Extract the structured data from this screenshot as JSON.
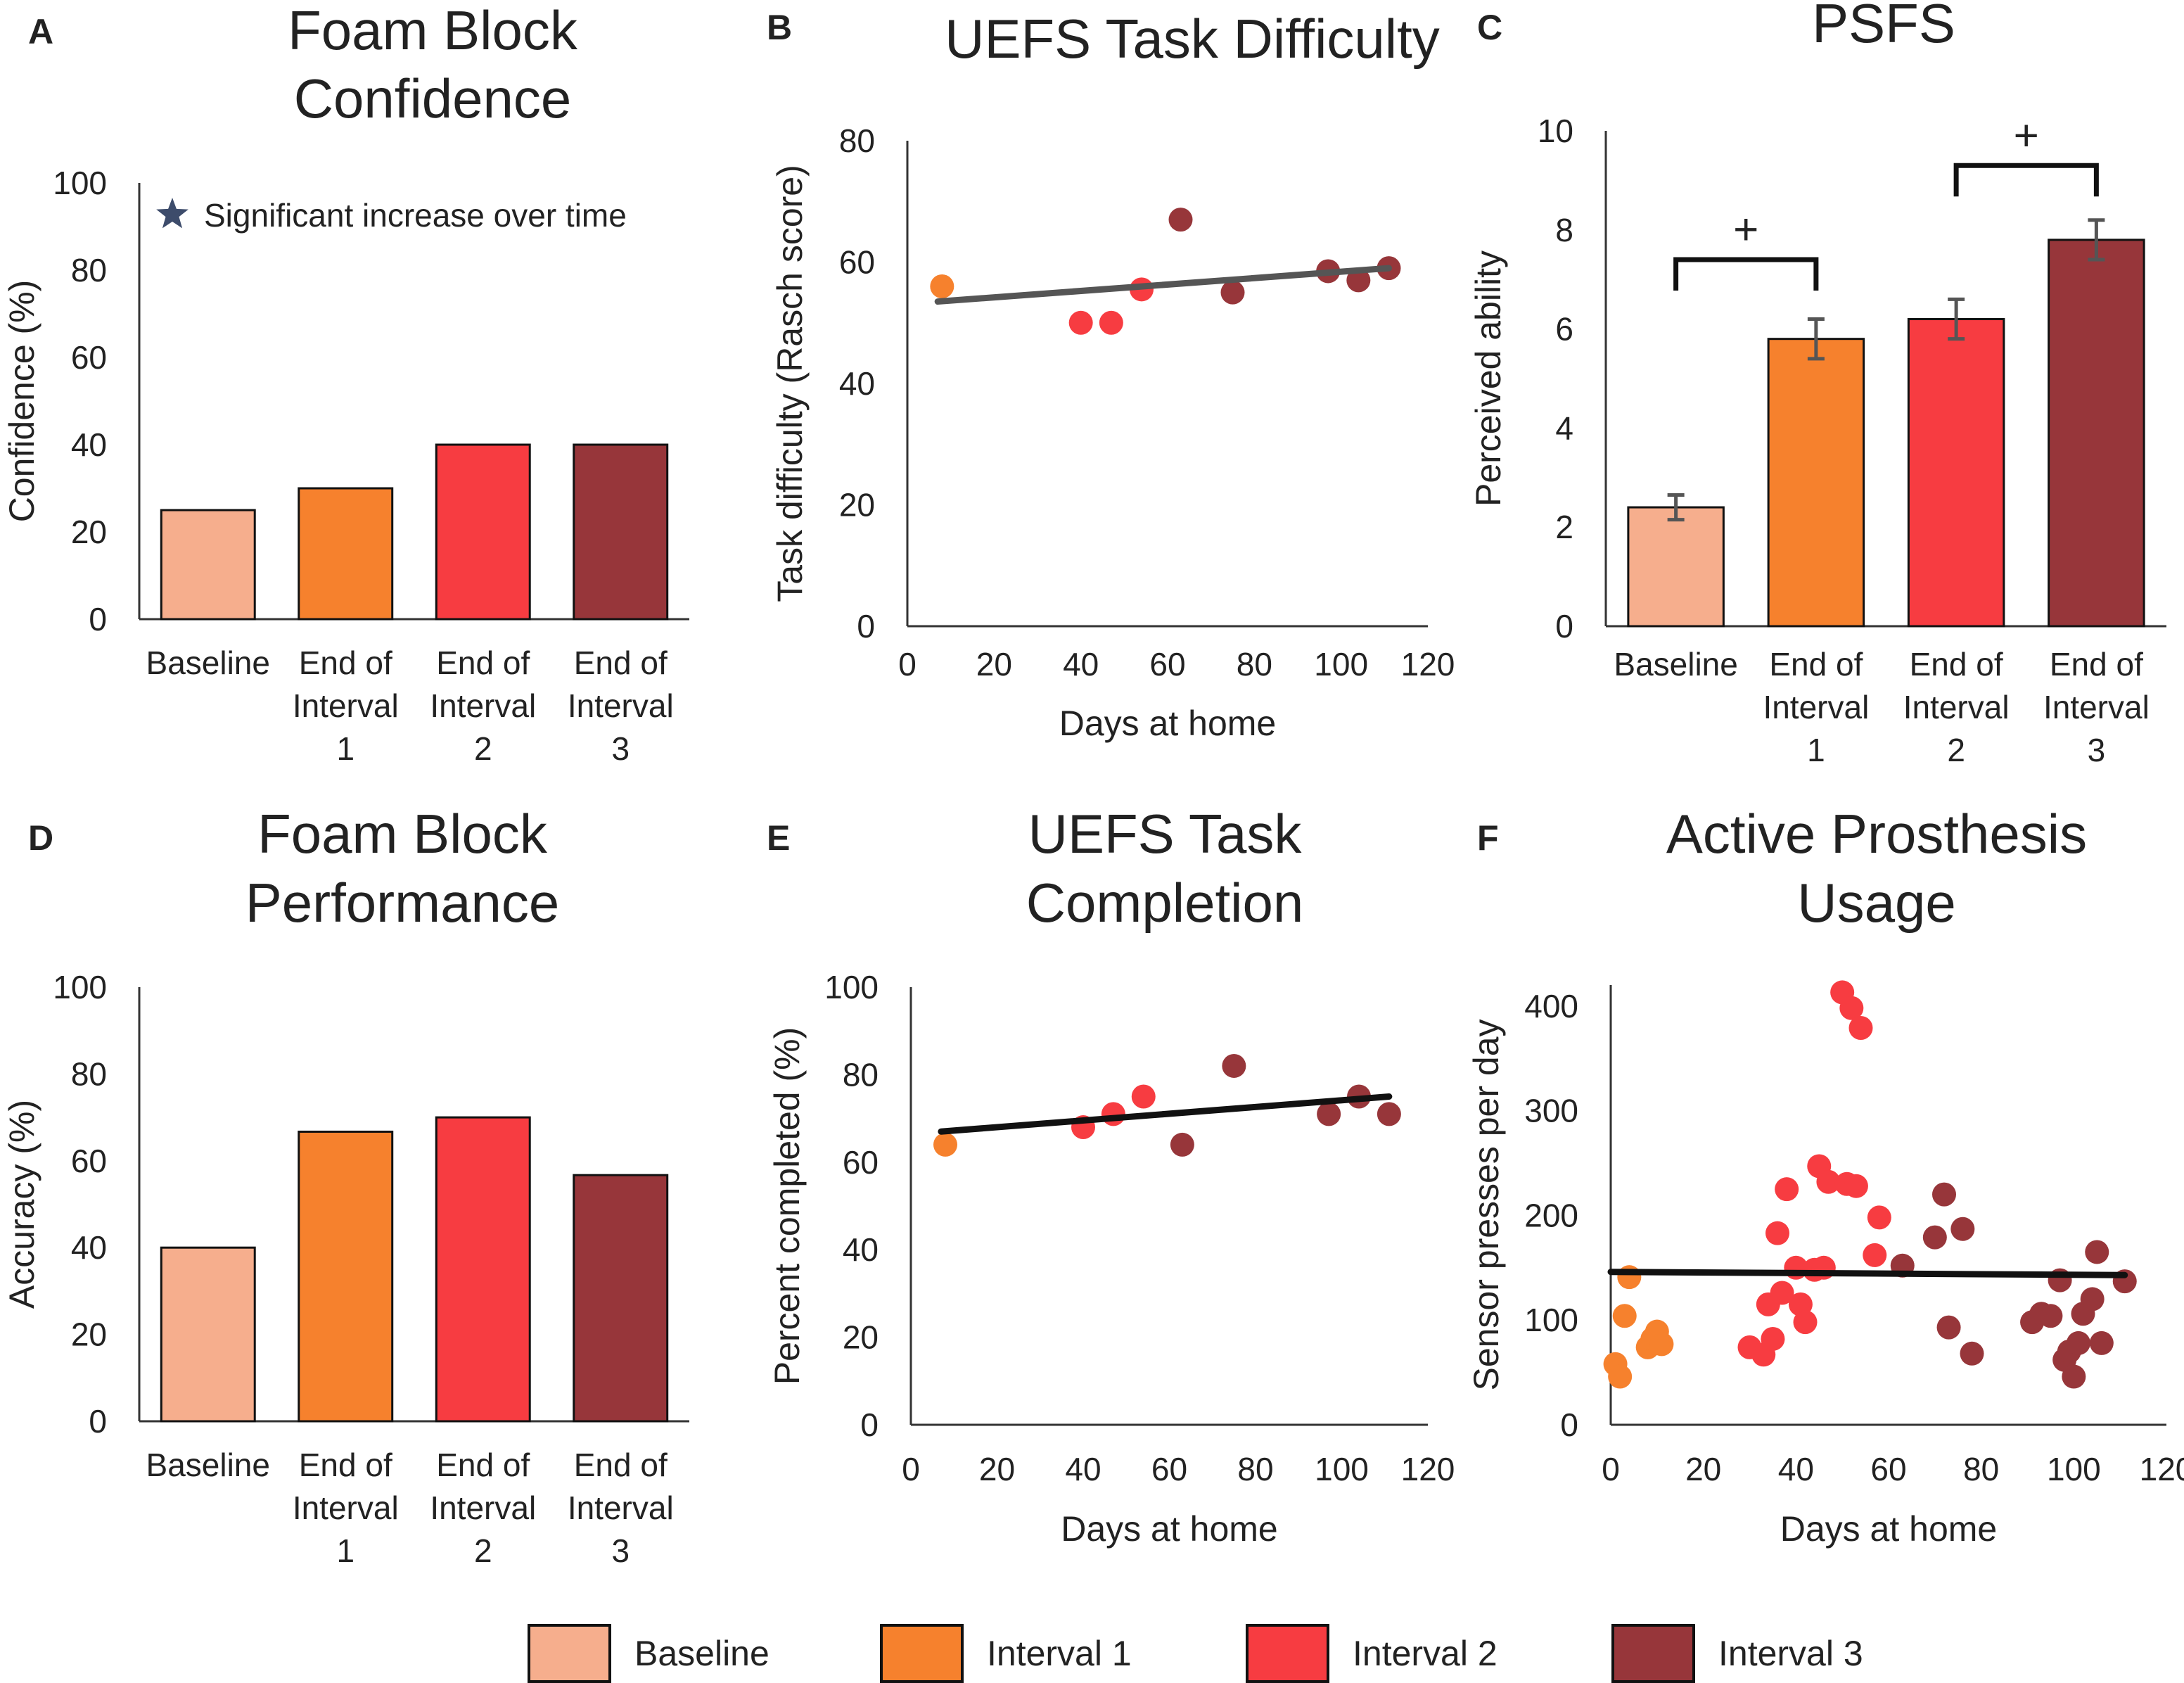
{
  "colors": {
    "baseline": "#F6AE8D",
    "interval1": "#F6812D",
    "interval2": "#F73C41",
    "interval3": "#97363A",
    "trend_gray": "#555555",
    "trend_black": "#111111",
    "star": "#3D4C6B",
    "errorbar": "#555555"
  },
  "legend": {
    "items": [
      {
        "label": "Baseline",
        "color": "#F6AE8D"
      },
      {
        "label": "Interval 1",
        "color": "#F6812D"
      },
      {
        "label": "Interval 2",
        "color": "#F73C41"
      },
      {
        "label": "Interval 3",
        "color": "#97363A"
      }
    ]
  },
  "chart_data": [
    {
      "panel": "A",
      "type": "bar",
      "title": [
        "Foam Block",
        "Confidence"
      ],
      "ylabel": "Confidence (%)",
      "ylim": [
        0,
        100
      ],
      "yticks": [
        0,
        20,
        40,
        60,
        80,
        100
      ],
      "categories": [
        [
          "Baseline"
        ],
        [
          "End of",
          "Interval",
          "1"
        ],
        [
          "End of",
          "Interval",
          "2"
        ],
        [
          "End of",
          "Interval",
          "3"
        ]
      ],
      "values": [
        25,
        30,
        40,
        40
      ],
      "annotation": {
        "icon": "star-icon",
        "text": "Significant increase over time"
      }
    },
    {
      "panel": "B",
      "type": "scatter",
      "title": [
        "UEFS Task Difficulty"
      ],
      "xlabel": "Days at home",
      "ylabel": "Task difficulty (Rasch score)",
      "xlim": [
        0,
        120
      ],
      "ylim": [
        0,
        80
      ],
      "xticks": [
        0,
        20,
        40,
        60,
        80,
        100,
        120
      ],
      "yticks": [
        0,
        20,
        40,
        60,
        80
      ],
      "points": [
        {
          "x": 8,
          "y": 56,
          "group": "interval1"
        },
        {
          "x": 40,
          "y": 50,
          "group": "interval2"
        },
        {
          "x": 47,
          "y": 50,
          "group": "interval2"
        },
        {
          "x": 54,
          "y": 55.5,
          "group": "interval2"
        },
        {
          "x": 63,
          "y": 67,
          "group": "interval3"
        },
        {
          "x": 75,
          "y": 55,
          "group": "interval3"
        },
        {
          "x": 97,
          "y": 58.5,
          "group": "interval3"
        },
        {
          "x": 104,
          "y": 57,
          "group": "interval3"
        },
        {
          "x": 111,
          "y": 59,
          "group": "interval3"
        }
      ],
      "trendline": {
        "x": [
          7,
          111
        ],
        "y": [
          53.5,
          59
        ],
        "color": "trend_gray"
      }
    },
    {
      "panel": "C",
      "type": "bar",
      "title": [
        "PSFS"
      ],
      "ylabel": "Perceived ability",
      "ylim": [
        0,
        10
      ],
      "yticks": [
        0,
        2,
        4,
        6,
        8,
        10
      ],
      "categories": [
        [
          "Baseline"
        ],
        [
          "End of",
          "Interval",
          "1"
        ],
        [
          "End of",
          "Interval",
          "2"
        ],
        [
          "End of",
          "Interval",
          "3"
        ]
      ],
      "values": [
        2.4,
        5.8,
        6.2,
        7.8
      ],
      "errors": [
        0.25,
        0.4,
        0.4,
        0.4
      ],
      "brackets": [
        {
          "from": 0,
          "to": 1,
          "y": 7.4,
          "label": "+"
        },
        {
          "from": 2,
          "to": 3,
          "y": 9.3,
          "label": "+"
        }
      ]
    },
    {
      "panel": "D",
      "type": "bar",
      "title": [
        "Foam Block",
        "Performance"
      ],
      "ylabel": "Accuracy (%)",
      "ylim": [
        0,
        100
      ],
      "yticks": [
        0,
        20,
        40,
        60,
        80,
        100
      ],
      "categories": [
        [
          "Baseline"
        ],
        [
          "End of",
          "Interval",
          "1"
        ],
        [
          "End of",
          "Interval",
          "2"
        ],
        [
          "End of",
          "Interval",
          "3"
        ]
      ],
      "values": [
        40,
        66.7,
        70,
        56.7
      ]
    },
    {
      "panel": "E",
      "type": "scatter",
      "title": [
        "UEFS Task",
        "Completion"
      ],
      "xlabel": "Days at home",
      "ylabel": "Percent completed (%)",
      "xlim": [
        0,
        120
      ],
      "ylim": [
        0,
        100
      ],
      "xticks": [
        0,
        20,
        40,
        60,
        80,
        100,
        120
      ],
      "yticks": [
        0,
        20,
        40,
        60,
        80,
        100
      ],
      "points": [
        {
          "x": 8,
          "y": 64,
          "group": "interval1"
        },
        {
          "x": 40,
          "y": 68,
          "group": "interval2"
        },
        {
          "x": 47,
          "y": 71,
          "group": "interval2"
        },
        {
          "x": 54,
          "y": 75,
          "group": "interval2"
        },
        {
          "x": 63,
          "y": 64,
          "group": "interval3"
        },
        {
          "x": 75,
          "y": 82,
          "group": "interval3"
        },
        {
          "x": 97,
          "y": 71,
          "group": "interval3"
        },
        {
          "x": 104,
          "y": 75,
          "group": "interval3"
        },
        {
          "x": 111,
          "y": 71,
          "group": "interval3"
        }
      ],
      "trendline": {
        "x": [
          7,
          111
        ],
        "y": [
          67,
          75
        ],
        "color": "trend_black"
      }
    },
    {
      "panel": "F",
      "type": "scatter",
      "title": [
        "Active Prosthesis",
        "Usage"
      ],
      "xlabel": "Days at home",
      "ylabel": "Sensor presses per day",
      "xlim": [
        0,
        120
      ],
      "ylim": [
        0,
        420
      ],
      "xticks": [
        0,
        20,
        40,
        60,
        80,
        100,
        120
      ],
      "yticks": [
        0,
        100,
        200,
        300,
        400
      ],
      "points": [
        {
          "x": 1,
          "y": 58,
          "group": "interval1"
        },
        {
          "x": 2,
          "y": 46,
          "group": "interval1"
        },
        {
          "x": 3,
          "y": 104,
          "group": "interval1"
        },
        {
          "x": 4,
          "y": 141,
          "group": "interval1"
        },
        {
          "x": 8,
          "y": 74,
          "group": "interval1"
        },
        {
          "x": 9,
          "y": 82,
          "group": "interval1"
        },
        {
          "x": 10,
          "y": 89,
          "group": "interval1"
        },
        {
          "x": 11,
          "y": 77,
          "group": "interval1"
        },
        {
          "x": 30,
          "y": 74,
          "group": "interval2"
        },
        {
          "x": 33,
          "y": 67,
          "group": "interval2"
        },
        {
          "x": 34,
          "y": 115,
          "group": "interval2"
        },
        {
          "x": 35,
          "y": 82,
          "group": "interval2"
        },
        {
          "x": 36,
          "y": 183,
          "group": "interval2"
        },
        {
          "x": 37,
          "y": 126,
          "group": "interval2"
        },
        {
          "x": 38,
          "y": 225,
          "group": "interval2"
        },
        {
          "x": 40,
          "y": 150,
          "group": "interval2"
        },
        {
          "x": 41,
          "y": 115,
          "group": "interval2"
        },
        {
          "x": 42,
          "y": 98,
          "group": "interval2"
        },
        {
          "x": 44,
          "y": 148,
          "group": "interval2"
        },
        {
          "x": 45,
          "y": 247,
          "group": "interval2"
        },
        {
          "x": 46,
          "y": 150,
          "group": "interval2"
        },
        {
          "x": 47,
          "y": 232,
          "group": "interval2"
        },
        {
          "x": 50,
          "y": 413,
          "group": "interval2"
        },
        {
          "x": 51,
          "y": 230,
          "group": "interval2"
        },
        {
          "x": 52,
          "y": 398,
          "group": "interval2"
        },
        {
          "x": 53,
          "y": 228,
          "group": "interval2"
        },
        {
          "x": 54,
          "y": 379,
          "group": "interval2"
        },
        {
          "x": 57,
          "y": 162,
          "group": "interval2"
        },
        {
          "x": 58,
          "y": 198,
          "group": "interval2"
        },
        {
          "x": 63,
          "y": 152,
          "group": "interval3"
        },
        {
          "x": 70,
          "y": 179,
          "group": "interval3"
        },
        {
          "x": 72,
          "y": 220,
          "group": "interval3"
        },
        {
          "x": 73,
          "y": 93,
          "group": "interval3"
        },
        {
          "x": 76,
          "y": 187,
          "group": "interval3"
        },
        {
          "x": 78,
          "y": 68,
          "group": "interval3"
        },
        {
          "x": 91,
          "y": 98,
          "group": "interval3"
        },
        {
          "x": 93,
          "y": 106,
          "group": "interval3"
        },
        {
          "x": 95,
          "y": 104,
          "group": "interval3"
        },
        {
          "x": 97,
          "y": 138,
          "group": "interval3"
        },
        {
          "x": 98,
          "y": 62,
          "group": "interval3"
        },
        {
          "x": 99,
          "y": 70,
          "group": "interval3"
        },
        {
          "x": 100,
          "y": 46,
          "group": "interval3"
        },
        {
          "x": 101,
          "y": 78,
          "group": "interval3"
        },
        {
          "x": 102,
          "y": 106,
          "group": "interval3"
        },
        {
          "x": 104,
          "y": 120,
          "group": "interval3"
        },
        {
          "x": 105,
          "y": 165,
          "group": "interval3"
        },
        {
          "x": 106,
          "y": 78,
          "group": "interval3"
        },
        {
          "x": 111,
          "y": 137,
          "group": "interval3"
        }
      ],
      "trendline": {
        "x": [
          0,
          111
        ],
        "y": [
          146,
          143
        ],
        "color": "trend_black"
      }
    }
  ]
}
